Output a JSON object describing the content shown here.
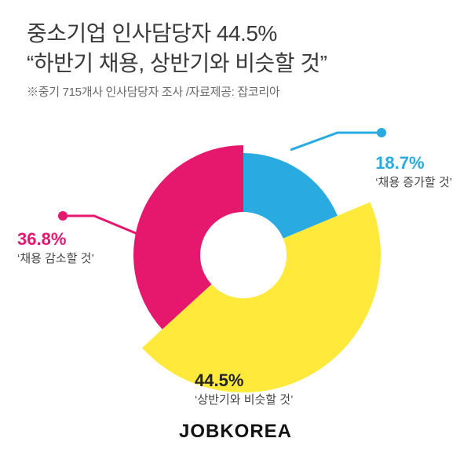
{
  "header": {
    "title_line_1": "중소기업 인사담당자 44.5%",
    "title_line_2": "“하반기 채용, 상반기와 비슷할 것”",
    "subtitle": "※중기 715개사 인사담당자 조사 /자료제공: 잡코리아"
  },
  "chart": {
    "type": "donut",
    "background_color": "#ffffff",
    "inner_radius": 55,
    "segments": [
      {
        "key": "increase",
        "value": 18.7,
        "label_pct": "18.7%",
        "label_text": "‘채용 증가할 것’",
        "color": "#29abe2",
        "outer_radius": 130
      },
      {
        "key": "similar",
        "value": 44.5,
        "label_pct": "44.5%",
        "label_text": "‘상반기와 비슷할 것’",
        "color": "#ffe93b",
        "outer_radius": 175
      },
      {
        "key": "decrease",
        "value": 36.8,
        "label_pct": "36.8%",
        "label_text": "‘채용 감소할 것’",
        "color": "#e6186e",
        "outer_radius": 140
      }
    ],
    "label_pct_fontsize": 22,
    "label_text_fontsize": 15,
    "label_text_color": "#444444"
  },
  "brand": "JOBKOREA",
  "title_fontsize": 28,
  "title_color": "#3a3a3a",
  "subtitle_fontsize": 15,
  "subtitle_color": "#6a6a6a",
  "brand_fontsize": 24,
  "brand_color": "#111111"
}
